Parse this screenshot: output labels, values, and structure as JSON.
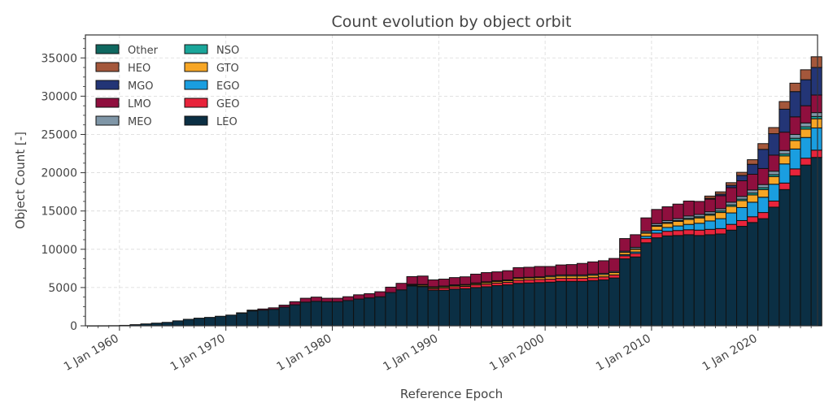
{
  "chart_data": {
    "type": "bar",
    "stacked": true,
    "title": "Count evolution by object orbit",
    "xlabel": "Reference Epoch",
    "ylabel": "Object Count [-]",
    "ylim": [
      0,
      38000
    ],
    "xlim": [
      1956.8,
      2025.6
    ],
    "y_ticks": [
      0,
      5000,
      10000,
      15000,
      20000,
      25000,
      30000,
      35000
    ],
    "x_ticks": [
      {
        "year": 1960,
        "label": "1 Jan 1960"
      },
      {
        "year": 1970,
        "label": "1 Jan 1970"
      },
      {
        "year": 1980,
        "label": "1 Jan 1980"
      },
      {
        "year": 1990,
        "label": "1 Jan 1990"
      },
      {
        "year": 2000,
        "label": "1 Jan 2000"
      },
      {
        "year": 2010,
        "label": "1 Jan 2010"
      },
      {
        "year": 2020,
        "label": "1 Jan 2020"
      }
    ],
    "grid": true,
    "legend_position": "top-left",
    "legend_columns": [
      [
        "Other",
        "HEO",
        "MGO",
        "LMO",
        "MEO"
      ],
      [
        "NSO",
        "GTO",
        "EGO",
        "GEO",
        "LEO"
      ]
    ],
    "series_colors": {
      "LEO": "#0b2f44",
      "GEO": "#e8243b",
      "EGO": "#1a9ee0",
      "GTO": "#f7a625",
      "NSO": "#1aa69a",
      "MEO": "#7f96a7",
      "LMO": "#8f0f3e",
      "MGO": "#233576",
      "HEO": "#a4573b",
      "Other": "#0f6860"
    },
    "x": [
      1957,
      1958,
      1959,
      1960,
      1961,
      1962,
      1963,
      1964,
      1965,
      1966,
      1967,
      1968,
      1969,
      1970,
      1971,
      1972,
      1973,
      1974,
      1975,
      1976,
      1977,
      1978,
      1979,
      1980,
      1981,
      1982,
      1983,
      1984,
      1985,
      1986,
      1987,
      1988,
      1989,
      1990,
      1991,
      1992,
      1993,
      1994,
      1995,
      1996,
      1997,
      1998,
      1999,
      2000,
      2001,
      2002,
      2003,
      2004,
      2005,
      2006,
      2007,
      2008,
      2009,
      2010,
      2011,
      2012,
      2013,
      2014,
      2015,
      2016,
      2017,
      2018,
      2019,
      2020,
      2021,
      2022,
      2023,
      2024,
      2025
    ],
    "series": [
      {
        "name": "LEO",
        "values": [
          2,
          8,
          20,
          60,
          150,
          250,
          350,
          450,
          650,
          850,
          1000,
          1100,
          1250,
          1400,
          1650,
          1950,
          2050,
          2150,
          2450,
          2750,
          3100,
          3200,
          3150,
          3150,
          3300,
          3500,
          3650,
          3800,
          4350,
          4700,
          5200,
          5100,
          4650,
          4650,
          4800,
          4850,
          5000,
          5100,
          5250,
          5350,
          5550,
          5600,
          5650,
          5700,
          5800,
          5800,
          5800,
          5900,
          6000,
          6250,
          8750,
          9000,
          10850,
          11500,
          11750,
          11800,
          11900,
          11800,
          11900,
          12000,
          12500,
          13000,
          13500,
          14000,
          15500,
          17800,
          19600,
          21000,
          22000
        ]
      },
      {
        "name": "GEO",
        "values": [
          0,
          0,
          0,
          0,
          0,
          0,
          0,
          0,
          0,
          0,
          0,
          0,
          0,
          0,
          0,
          0,
          0,
          0,
          0,
          0,
          0,
          0,
          0,
          0,
          0,
          0,
          0,
          0,
          0,
          0,
          80,
          100,
          200,
          300,
          300,
          300,
          350,
          350,
          350,
          350,
          400,
          400,
          400,
          400,
          400,
          400,
          400,
          400,
          400,
          400,
          400,
          450,
          550,
          600,
          600,
          650,
          650,
          700,
          700,
          700,
          750,
          750,
          750,
          800,
          800,
          850,
          900,
          900,
          950
        ]
      },
      {
        "name": "EGO",
        "values": [
          0,
          0,
          0,
          0,
          0,
          0,
          0,
          0,
          0,
          0,
          0,
          0,
          0,
          0,
          0,
          0,
          0,
          0,
          0,
          0,
          0,
          0,
          0,
          0,
          0,
          0,
          0,
          0,
          0,
          0,
          0,
          0,
          0,
          0,
          0,
          0,
          0,
          0,
          0,
          0,
          0,
          0,
          0,
          0,
          0,
          0,
          0,
          0,
          0,
          0,
          150,
          200,
          300,
          400,
          500,
          600,
          700,
          900,
          1100,
          1300,
          1500,
          1700,
          1900,
          2000,
          2200,
          2500,
          2600,
          2700,
          2900
        ]
      },
      {
        "name": "GTO",
        "values": [
          0,
          0,
          0,
          0,
          0,
          0,
          0,
          0,
          0,
          0,
          0,
          0,
          0,
          0,
          0,
          0,
          0,
          0,
          0,
          0,
          0,
          0,
          0,
          0,
          0,
          0,
          0,
          0,
          0,
          0,
          100,
          150,
          150,
          150,
          150,
          150,
          150,
          200,
          200,
          200,
          250,
          250,
          250,
          300,
          300,
          300,
          300,
          300,
          300,
          300,
          300,
          350,
          400,
          500,
          550,
          600,
          650,
          700,
          750,
          800,
          850,
          900,
          950,
          1000,
          1000,
          1050,
          1100,
          1100,
          1200
        ]
      },
      {
        "name": "NSO",
        "values": [
          0,
          0,
          0,
          0,
          0,
          0,
          0,
          0,
          0,
          0,
          0,
          0,
          0,
          0,
          0,
          0,
          0,
          0,
          0,
          0,
          0,
          0,
          0,
          0,
          0,
          0,
          0,
          0,
          0,
          0,
          0,
          0,
          0,
          0,
          0,
          0,
          0,
          0,
          0,
          0,
          0,
          0,
          0,
          0,
          0,
          0,
          0,
          0,
          0,
          0,
          0,
          50,
          50,
          100,
          100,
          100,
          150,
          150,
          150,
          200,
          200,
          200,
          250,
          250,
          250,
          250,
          300,
          300,
          300
        ]
      },
      {
        "name": "MEO",
        "values": [
          0,
          0,
          0,
          0,
          0,
          0,
          0,
          0,
          0,
          0,
          0,
          0,
          0,
          0,
          0,
          0,
          0,
          0,
          0,
          0,
          0,
          0,
          0,
          0,
          0,
          0,
          0,
          0,
          0,
          0,
          50,
          50,
          100,
          100,
          100,
          100,
          100,
          100,
          100,
          100,
          100,
          100,
          100,
          150,
          150,
          150,
          150,
          150,
          150,
          150,
          150,
          200,
          200,
          250,
          250,
          250,
          300,
          300,
          300,
          300,
          350,
          350,
          400,
          400,
          450,
          450,
          500,
          500,
          500
        ]
      },
      {
        "name": "LMO",
        "values": [
          0,
          0,
          0,
          0,
          0,
          0,
          0,
          0,
          0,
          0,
          0,
          0,
          0,
          0,
          50,
          100,
          150,
          200,
          250,
          400,
          500,
          550,
          450,
          450,
          500,
          550,
          550,
          650,
          700,
          850,
          1000,
          1100,
          900,
          900,
          950,
          1000,
          1150,
          1200,
          1150,
          1200,
          1300,
          1300,
          1350,
          1200,
          1300,
          1350,
          1500,
          1600,
          1650,
          1700,
          1650,
          1650,
          1750,
          1850,
          1800,
          1900,
          1950,
          1700,
          1650,
          1700,
          1900,
          2050,
          2050,
          2100,
          2100,
          2400,
          2300,
          2250,
          2300
        ]
      },
      {
        "name": "MGO",
        "values": [
          0,
          0,
          0,
          0,
          0,
          0,
          0,
          0,
          0,
          0,
          0,
          0,
          0,
          0,
          0,
          0,
          0,
          0,
          0,
          0,
          0,
          0,
          0,
          0,
          0,
          0,
          0,
          0,
          0,
          0,
          0,
          0,
          0,
          0,
          0,
          0,
          0,
          0,
          0,
          0,
          0,
          0,
          0,
          0,
          0,
          0,
          0,
          0,
          0,
          0,
          0,
          0,
          0,
          0,
          0,
          0,
          0,
          0,
          100,
          200,
          300,
          700,
          1300,
          2500,
          2800,
          3000,
          3300,
          3400,
          3600
        ]
      },
      {
        "name": "HEO",
        "values": [
          0,
          0,
          0,
          0,
          0,
          0,
          0,
          0,
          0,
          0,
          0,
          0,
          0,
          0,
          0,
          0,
          0,
          0,
          0,
          0,
          0,
          0,
          0,
          0,
          0,
          0,
          0,
          0,
          0,
          0,
          0,
          0,
          0,
          0,
          0,
          0,
          0,
          0,
          0,
          0,
          0,
          0,
          0,
          0,
          0,
          0,
          0,
          0,
          0,
          0,
          0,
          0,
          0,
          0,
          0,
          0,
          0,
          0,
          300,
          300,
          350,
          400,
          600,
          750,
          800,
          1000,
          1100,
          1300,
          1400
        ]
      },
      {
        "name": "Other",
        "values": [
          0,
          0,
          0,
          0,
          0,
          0,
          0,
          0,
          0,
          0,
          0,
          0,
          0,
          0,
          0,
          0,
          0,
          0,
          0,
          0,
          0,
          0,
          0,
          0,
          0,
          0,
          0,
          0,
          0,
          0,
          0,
          0,
          0,
          0,
          0,
          0,
          0,
          0,
          0,
          0,
          0,
          0,
          0,
          0,
          0,
          0,
          0,
          0,
          0,
          0,
          0,
          0,
          0,
          0,
          0,
          0,
          0,
          0,
          0,
          0,
          0,
          0,
          0,
          0,
          0,
          0,
          0,
          0,
          0
        ]
      }
    ]
  }
}
